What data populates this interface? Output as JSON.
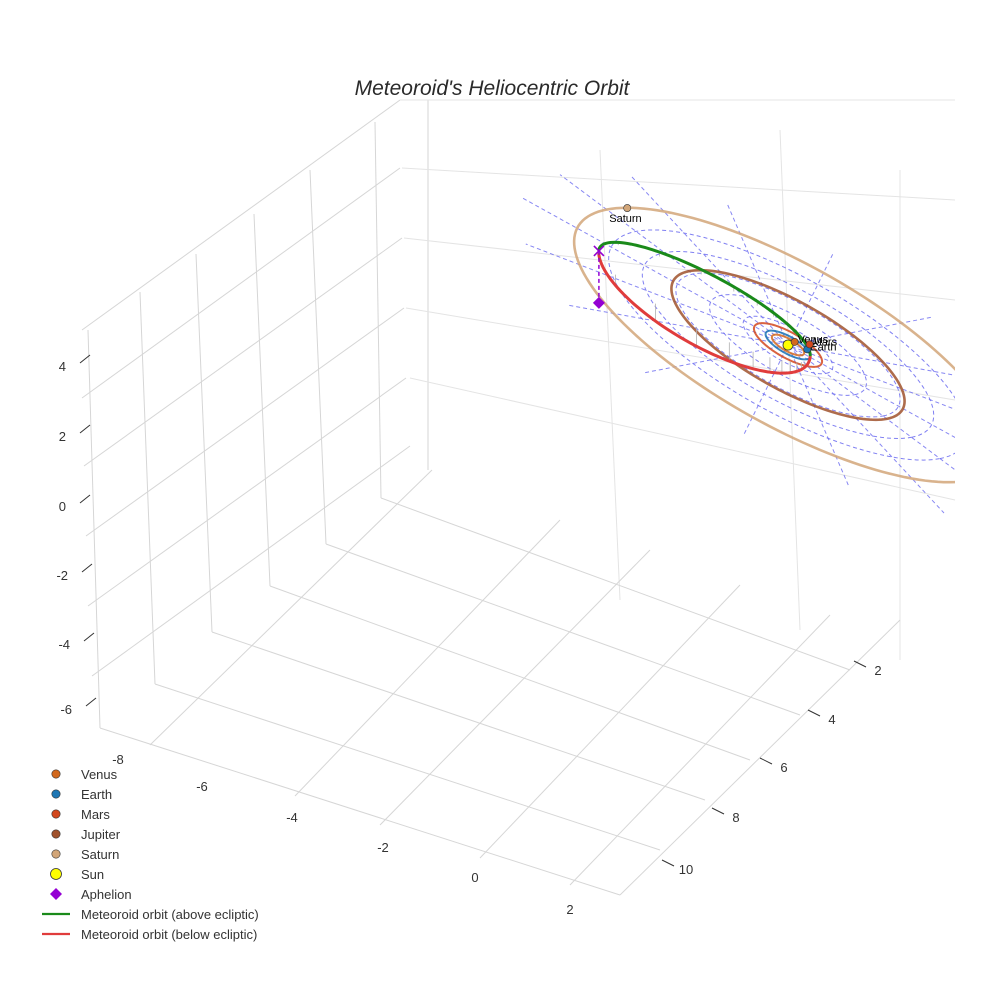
{
  "chart_data": {
    "type": "scatter3d",
    "title": "Meteoroid's Heliocentric Orbit",
    "axes": {
      "x": {
        "range": [
          -8,
          2
        ],
        "ticks": [
          -8,
          -6,
          -4,
          -2,
          0,
          2
        ]
      },
      "y": {
        "range": [
          1,
          11
        ],
        "ticks": [
          2,
          4,
          6,
          8,
          10
        ]
      },
      "z": {
        "range": [
          -6.5,
          4.5
        ],
        "ticks": [
          4,
          2,
          0,
          -2,
          -4,
          -6
        ]
      }
    },
    "grid": true,
    "ecliptic_grid": {
      "style": "dashed",
      "color": "#6a6af0",
      "rings_au": [
        1,
        2,
        3.5,
        5,
        6.5,
        8
      ],
      "radial_lines": 8
    },
    "planets": [
      {
        "name": "Venus",
        "orbit_au": 0.72,
        "color": "#d2691e",
        "label": "Venus"
      },
      {
        "name": "Earth",
        "orbit_au": 1.0,
        "color": "#1f77b4",
        "label": "Earth"
      },
      {
        "name": "Mars",
        "orbit_au": 1.52,
        "color": "#d2481e",
        "label": "Mars"
      },
      {
        "name": "Jupiter",
        "orbit_au": 5.2,
        "color": "#a0522d",
        "label": ""
      },
      {
        "name": "Saturn",
        "orbit_au": 9.54,
        "color": "#d2a679",
        "label": "Saturn"
      }
    ],
    "sun": {
      "name": "Sun",
      "color": "#ffff00"
    },
    "meteoroid_orbit": {
      "semi_major_axis_au": 4.72,
      "eccentricity": 0.79,
      "inclination_deg": 5,
      "perihelion_au": 1.0,
      "aphelion_au": 8.44,
      "above_color": "#1a8a1a",
      "below_color": "#e03c3c"
    },
    "aphelion": {
      "name": "Aphelion",
      "color": "#9400d3"
    },
    "legend": {
      "placement": "bottom-left",
      "entries": [
        {
          "label": "Venus",
          "kind": "dot",
          "color": "#d2691e"
        },
        {
          "label": "Earth",
          "kind": "dot",
          "color": "#1f77b4"
        },
        {
          "label": "Mars",
          "kind": "dot",
          "color": "#d2481e"
        },
        {
          "label": "Jupiter",
          "kind": "dot",
          "color": "#a0522d"
        },
        {
          "label": "Saturn",
          "kind": "dot",
          "color": "#d2a679"
        },
        {
          "label": "Sun",
          "kind": "bigdot",
          "color": "#ffff00"
        },
        {
          "label": "Aphelion",
          "kind": "diamond",
          "color": "#9400d3"
        },
        {
          "label": "Meteoroid orbit (above ecliptic)",
          "kind": "line",
          "color": "#1a8a1a"
        },
        {
          "label": "Meteoroid orbit (below ecliptic)",
          "kind": "line",
          "color": "#e03c3c"
        }
      ]
    }
  }
}
